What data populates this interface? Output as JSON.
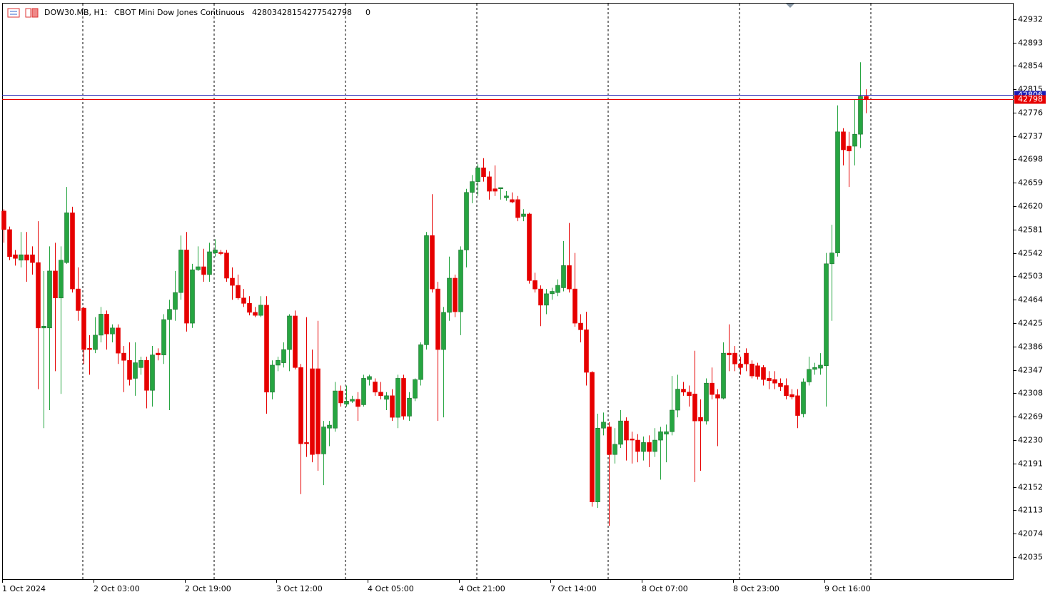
{
  "chart_data": {
    "type": "candlestick",
    "header": {
      "symbol": "DOW30.MB, H1:",
      "description": "CBOT Mini Dow Jones Continuous",
      "values": [
        42803,
        42815,
        42775,
        42798,
        0
      ]
    },
    "categories": [
      "1 Oct 2024",
      null,
      null,
      null,
      null,
      null,
      null,
      null,
      null,
      null,
      null,
      null,
      null,
      null,
      null,
      null,
      "2 Oct 03:00",
      null,
      null,
      null,
      null,
      null,
      null,
      null,
      null,
      null,
      null,
      null,
      null,
      null,
      null,
      null,
      "2 Oct 19:00",
      null,
      null,
      null,
      null,
      null,
      null,
      null,
      null,
      null,
      null,
      null,
      null,
      null,
      null,
      null,
      "3 Oct 12:00",
      null,
      null,
      null,
      null,
      null,
      null,
      null,
      null,
      null,
      null,
      null,
      null,
      null,
      null,
      null,
      "4 Oct 05:00",
      null,
      null,
      null,
      null,
      null,
      null,
      null,
      null,
      null,
      null,
      null,
      null,
      null,
      null,
      null,
      "4 Oct 21:00",
      null,
      null,
      null,
      null,
      null,
      null,
      null,
      null,
      null,
      null,
      null,
      null,
      null,
      null,
      null,
      "7 Oct 14:00",
      null,
      null,
      null,
      null,
      null,
      null,
      null,
      null,
      null,
      null,
      null,
      null,
      null,
      null,
      null,
      "8 Oct 07:00",
      null,
      null,
      null,
      null,
      null,
      null,
      null,
      null,
      null,
      null,
      null,
      null,
      null,
      null,
      null,
      "8 Oct 23:00",
      null,
      null,
      null,
      null,
      null,
      null,
      null,
      null,
      null,
      null,
      null,
      null,
      null,
      null,
      null,
      "9 Oct 16:00",
      null,
      null,
      null,
      null,
      null,
      null,
      null
    ],
    "open": [
      42612,
      42581,
      42539,
      42530,
      42539,
      42539,
      42526,
      42417,
      42417,
      42512,
      42467,
      42526,
      42609,
      42482,
      42450,
      42383,
      42381,
      42405,
      42440,
      42407,
      42417,
      42375,
      42363,
      42333,
      42351,
      42363,
      42313,
      42375,
      42372,
      42431,
      42448,
      42476,
      42547,
      42425,
      42514,
      42519,
      42506,
      42542,
      42543,
      42542,
      42500,
      42488,
      42467,
      42458,
      42443,
      42438,
      42455,
      42310,
      42355,
      42359,
      42381,
      42437,
      42351,
      42226,
      42349,
      42349,
      42207,
      42250,
      42250,
      42312,
      42290,
      42295,
      42298,
      42289,
      42331,
      42327,
      42310,
      42298,
      42304,
      42268,
      42333,
      42270,
      42300,
      42331,
      42389,
      42571,
      42482,
      42381,
      42443,
      42500,
      42444,
      42547,
      42643,
      42661,
      42684,
      42669,
      42649,
      42649,
      42634,
      42631,
      42631,
      42603,
      42607,
      42496,
      42482,
      42455,
      42474,
      42476,
      42484,
      42521,
      42482,
      42425,
      42414,
      42343,
      42127,
      42250,
      42252,
      42206,
      42223,
      42262,
      42232,
      42230,
      42211,
      42226,
      42211,
      42230,
      42240,
      42244,
      42280,
      42315,
      42310,
      42307,
      42268,
      42262,
      42325,
      42306,
      42300,
      42375,
      42375,
      42357,
      42375,
      42357,
      42354,
      42351,
      42333,
      42331,
      42325,
      42321,
      42306,
      42304,
      42274,
      42327,
      42348,
      42350,
      42354,
      42524,
      42542,
      42744,
      42720,
      42720,
      42740,
      42803
    ],
    "high": [
      42615,
      42586,
      42547,
      42577,
      42577,
      42553,
      42595,
      42512,
      42553,
      42559,
      42553,
      42652,
      42619,
      42518,
      42452,
      42405,
      42435,
      42452,
      42446,
      42423,
      42423,
      42387,
      42393,
      42393,
      42369,
      42369,
      42387,
      42383,
      42440,
      42464,
      42512,
      42571,
      42577,
      42524,
      42553,
      42549,
      42559,
      42565,
      42547,
      42547,
      42518,
      42506,
      42482,
      42470,
      42452,
      42470,
      42470,
      42363,
      42369,
      42393,
      42440,
      42446,
      42357,
      42435,
      42381,
      42429,
      42262,
      42262,
      42327,
      42321,
      42321,
      42304,
      42310,
      42339,
      42339,
      42333,
      42327,
      42310,
      42315,
      42339,
      42339,
      42310,
      42333,
      42393,
      42577,
      42640,
      42494,
      42452,
      42536,
      42506,
      42553,
      42649,
      42672,
      42690,
      42700,
      42678,
      42688,
      42651,
      42645,
      42643,
      42637,
      42615,
      42609,
      42509,
      42488,
      42482,
      42484,
      42498,
      42562,
      42592,
      42542,
      42440,
      42444,
      42345,
      42274,
      42276,
      42260,
      42250,
      42280,
      42268,
      42244,
      42240,
      42236,
      42238,
      42250,
      42252,
      42256,
      42337,
      42339,
      42327,
      42321,
      42379,
      42298,
      42333,
      42351,
      42315,
      42393,
      42423,
      42387,
      42369,
      42383,
      42363,
      42359,
      42355,
      42345,
      42345,
      42333,
      42333,
      42315,
      42315,
      42333,
      42369,
      42359,
      42375,
      42542,
      42589,
      42788,
      42750,
      42744,
      42798,
      42860,
      42815
    ],
    "low": [
      42559,
      42530,
      42521,
      42518,
      42494,
      42506,
      42315,
      42250,
      42280,
      42345,
      42307,
      42524,
      42476,
      42429,
      42357,
      42339,
      42375,
      42393,
      42381,
      42393,
      42357,
      42310,
      42321,
      42304,
      42339,
      42283,
      42286,
      42363,
      42357,
      42280,
      42429,
      42464,
      42411,
      42417,
      42512,
      42494,
      42494,
      42536,
      42538,
      42494,
      42464,
      42464,
      42452,
      42438,
      42435,
      42435,
      42274,
      42298,
      42345,
      42351,
      42345,
      42348,
      42140,
      42202,
      42193,
      42179,
      42155,
      42220,
      42244,
      42286,
      42286,
      42292,
      42262,
      42286,
      42321,
      42304,
      42298,
      42280,
      42262,
      42250,
      42264,
      42262,
      42295,
      42321,
      42381,
      42476,
      42262,
      42268,
      42429,
      42435,
      42405,
      42518,
      42625,
      42637,
      42661,
      42631,
      42637,
      42631,
      42629,
      42625,
      42595,
      42595,
      42491,
      42476,
      42420,
      42440,
      42464,
      42470,
      42478,
      42476,
      42419,
      42393,
      42321,
      42119,
      42117,
      42238,
      42087,
      42191,
      42217,
      42196,
      42191,
      42193,
      42196,
      42185,
      42202,
      42164,
      42193,
      42238,
      42268,
      42304,
      42286,
      42160,
      42179,
      42256,
      42298,
      42220,
      42298,
      42345,
      42345,
      42339,
      42345,
      42333,
      42331,
      42321,
      42315,
      42315,
      42312,
      42298,
      42298,
      42250,
      42268,
      42321,
      42339,
      42339,
      42286,
      42429,
      42536,
      42688,
      42652,
      42688,
      42717,
      42775
    ],
    "close": [
      42581,
      42536,
      42533,
      42539,
      42530,
      42526,
      42417,
      42420,
      42512,
      42467,
      42530,
      42609,
      42482,
      42446,
      42381,
      42381,
      42405,
      42440,
      42407,
      42417,
      42375,
      42363,
      42331,
      42359,
      42363,
      42313,
      42372,
      42372,
      42431,
      42448,
      42476,
      42547,
      42425,
      42514,
      42519,
      42506,
      42544,
      42547,
      42541,
      42500,
      42488,
      42467,
      42458,
      42443,
      42438,
      42455,
      42310,
      42355,
      42363,
      42381,
      42437,
      42351,
      42224,
      42224,
      42206,
      42207,
      42252,
      42255,
      42312,
      42292,
      42295,
      42298,
      42286,
      42333,
      42336,
      42310,
      42304,
      42304,
      42268,
      42333,
      42270,
      42300,
      42331,
      42389,
      42571,
      42482,
      42381,
      42443,
      42500,
      42444,
      42547,
      42643,
      42661,
      42684,
      42669,
      42645,
      42645,
      42651,
      42637,
      42627,
      42601,
      42607,
      42496,
      42482,
      42455,
      42474,
      42478,
      42488,
      42521,
      42482,
      42425,
      42414,
      42343,
      42127,
      42250,
      42260,
      42206,
      42223,
      42262,
      42230,
      42230,
      42211,
      42226,
      42211,
      42230,
      42244,
      42244,
      42280,
      42315,
      42310,
      42304,
      42262,
      42262,
      42325,
      42306,
      42300,
      42375,
      42372,
      42357,
      42351,
      42357,
      42337,
      42336,
      42331,
      42329,
      42325,
      42319,
      42304,
      42302,
      42271,
      42327,
      42348,
      42351,
      42355,
      42524,
      42542,
      42744,
      42714,
      42712,
      42740,
      42803,
      42798
    ],
    "up_color": "#26a541",
    "down_color": "#e60000",
    "price_lines": [
      {
        "value": 42806,
        "color": "#1c1cb4"
      },
      {
        "value": 42798,
        "color": "#e60000"
      }
    ],
    "ylim": [
      41997,
      42959
    ],
    "yticks": [
      42035,
      42074,
      42113,
      42152,
      42191,
      42230,
      42269,
      42308,
      42347,
      42386,
      42425,
      42464,
      42503,
      42542,
      42581,
      42620,
      42659,
      42698,
      42737,
      42776,
      42815,
      42854,
      42893,
      42932
    ]
  }
}
